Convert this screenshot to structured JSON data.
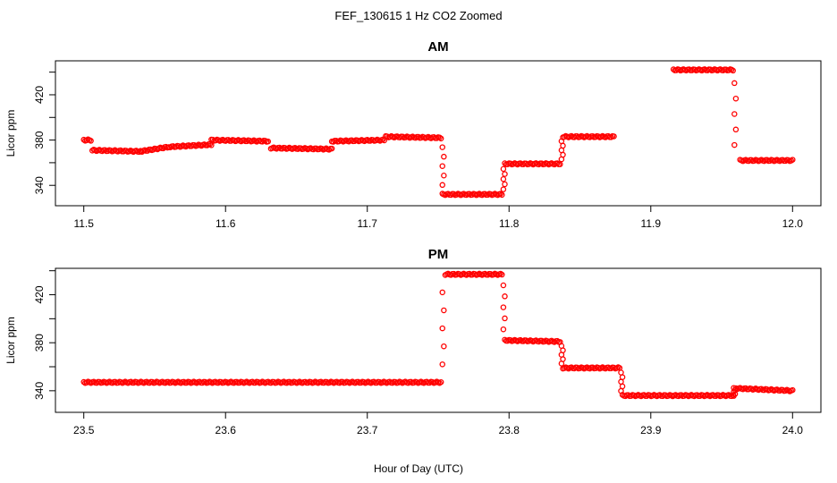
{
  "figure": {
    "title": "FEF_130615  1 Hz CO2 Zoomed",
    "xlabel": "Hour of Day (UTC)"
  },
  "chart_data": [
    {
      "type": "scatter",
      "title": "AM",
      "xlabel": "",
      "ylabel": "Licor ppm",
      "xlim": [
        11.48,
        12.02
      ],
      "ylim": [
        322,
        450
      ],
      "x_ticks": [
        "11.5",
        "11.6",
        "11.7",
        "11.8",
        "11.9",
        "12.0"
      ],
      "y_ticks": [
        "340",
        "380",
        "420"
      ],
      "marker": "open-circle",
      "color": "#ff0000",
      "grid": false,
      "segments": [
        {
          "x": [
            11.5,
            11.505
          ],
          "y": [
            380,
            380
          ]
        },
        {
          "x": [
            11.506,
            11.54
          ],
          "y": [
            371,
            370
          ]
        },
        {
          "x": [
            11.54,
            11.56
          ],
          "y": [
            370,
            374
          ]
        },
        {
          "x": [
            11.56,
            11.59
          ],
          "y": [
            374,
            376
          ]
        },
        {
          "x": [
            11.59,
            11.63
          ],
          "y": [
            380,
            379
          ]
        },
        {
          "x": [
            11.632,
            11.675
          ],
          "y": [
            373,
            372
          ]
        },
        {
          "x": [
            11.675,
            11.712
          ],
          "y": [
            379,
            380
          ]
        },
        {
          "x": [
            11.713,
            11.752
          ],
          "y": [
            383,
            382
          ]
        },
        {
          "x": [
            11.753,
            11.795
          ],
          "y": [
            332,
            332
          ]
        },
        {
          "x": [
            11.797,
            11.836
          ],
          "y": [
            359,
            359
          ]
        },
        {
          "x": [
            11.838,
            11.874
          ],
          "y": [
            383,
            383
          ]
        },
        {
          "x": [
            11.916,
            11.958
          ],
          "y": [
            442,
            442
          ]
        },
        {
          "x": [
            11.963,
            12.0
          ],
          "y": [
            362,
            362
          ]
        }
      ],
      "transitions": [
        {
          "x": 11.7535,
          "y": [
            382,
            332
          ]
        },
        {
          "x": 11.7965,
          "y": [
            332,
            359
          ]
        },
        {
          "x": 11.8375,
          "y": [
            359,
            383
          ]
        },
        {
          "x": 11.9595,
          "y": [
            444,
            362
          ]
        }
      ]
    },
    {
      "type": "scatter",
      "title": "PM",
      "xlabel": "",
      "ylabel": "Licor ppm",
      "xlim": [
        23.48,
        24.02
      ],
      "ylim": [
        322,
        442
      ],
      "x_ticks": [
        "23.5",
        "23.6",
        "23.7",
        "23.8",
        "23.9",
        "24.0"
      ],
      "y_ticks": [
        "340",
        "380",
        "420"
      ],
      "marker": "open-circle",
      "color": "#ff0000",
      "grid": false,
      "segments": [
        {
          "x": [
            23.5,
            23.752
          ],
          "y": [
            347,
            347
          ]
        },
        {
          "x": [
            23.755,
            23.795
          ],
          "y": [
            437,
            437
          ]
        },
        {
          "x": [
            23.797,
            23.836
          ],
          "y": [
            382,
            381
          ]
        },
        {
          "x": [
            23.838,
            23.878
          ],
          "y": [
            359,
            359
          ]
        },
        {
          "x": [
            23.88,
            23.958
          ],
          "y": [
            336,
            336
          ]
        },
        {
          "x": [
            23.96,
            24.0
          ],
          "y": [
            342,
            340
          ]
        }
      ],
      "transitions": [
        {
          "x": 23.7535,
          "y": [
            347,
            437
          ]
        },
        {
          "x": 23.7965,
          "y": [
            437,
            382
          ]
        },
        {
          "x": 23.8375,
          "y": [
            381,
            359
          ]
        },
        {
          "x": 23.8795,
          "y": [
            359,
            336
          ]
        },
        {
          "x": 23.959,
          "y": [
            334,
            344
          ]
        }
      ]
    }
  ]
}
